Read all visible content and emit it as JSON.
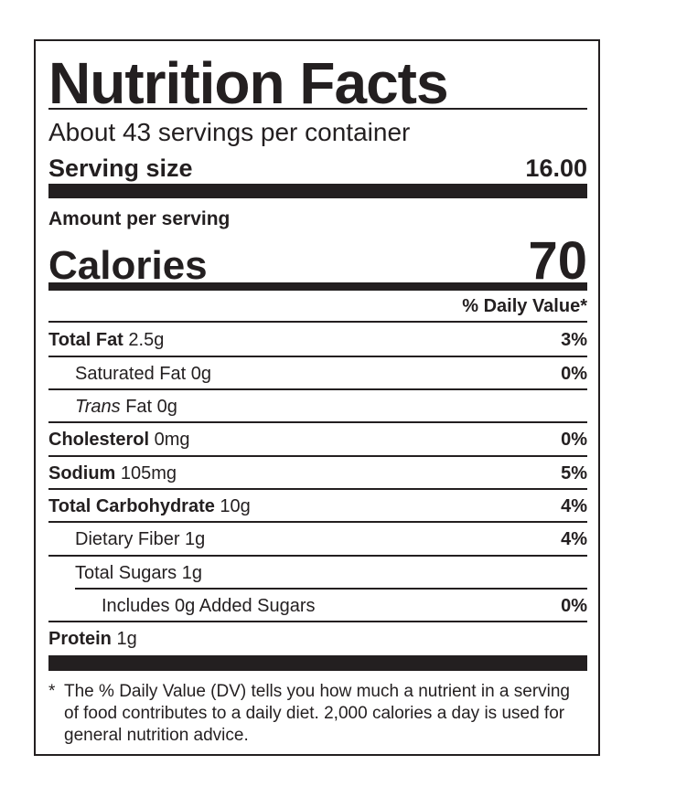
{
  "label": {
    "title": "Nutrition Facts",
    "servings_per_container": "About 43 servings per container",
    "serving_size_label": "Serving size",
    "serving_size_value": "16.00",
    "amount_per_serving": "Amount per serving",
    "calories_label": "Calories",
    "calories_value": "70",
    "daily_value_header": "% Daily Value*",
    "nutrients": [
      {
        "name": "Total Fat",
        "amount": " 2.5g",
        "dv": "3%"
      },
      {
        "name": "Saturated Fat 0g",
        "amount": "",
        "dv": "0%"
      },
      {
        "name": "Trans",
        "amount": " Fat 0g",
        "dv": ""
      },
      {
        "name": "Cholesterol",
        "amount": " 0mg",
        "dv": "0%"
      },
      {
        "name": "Sodium",
        "amount": " 105mg",
        "dv": "5%"
      },
      {
        "name": "Total Carbohydrate",
        "amount": " 10g",
        "dv": "4%"
      },
      {
        "name": "Dietary Fiber 1g",
        "amount": "",
        "dv": "4%"
      },
      {
        "name": "Total Sugars 1g",
        "amount": "",
        "dv": ""
      },
      {
        "name": "Includes 0g Added Sugars",
        "amount": "",
        "dv": "0%"
      },
      {
        "name": "Protein",
        "amount": " 1g",
        "dv": ""
      }
    ],
    "footnote_star": "*",
    "footnote": "The % Daily Value (DV) tells you how much a nutrient in a serving of food contributes to a daily diet. 2,000 calories a day is used for general nutrition advice."
  }
}
